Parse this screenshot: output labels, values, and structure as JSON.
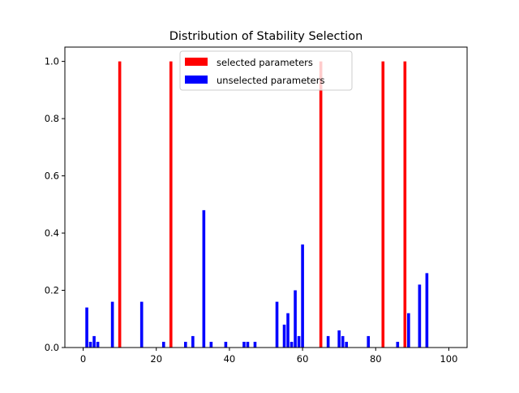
{
  "chart_data": {
    "type": "bar",
    "title": "Distribution of Stability Selection",
    "xlabel": "",
    "ylabel": "",
    "xlim": [
      -5,
      105
    ],
    "ylim": [
      0,
      1.05
    ],
    "xticks": [
      0,
      20,
      40,
      60,
      80,
      100
    ],
    "yticks": [
      0.0,
      0.2,
      0.4,
      0.6,
      0.8,
      1.0
    ],
    "grid": false,
    "legend_position": "top-center",
    "series": [
      {
        "name": "selected parameters",
        "color": "#ff0000",
        "x": [
          10,
          24,
          65,
          82,
          88
        ],
        "values": [
          1.0,
          1.0,
          1.0,
          1.0,
          1.0
        ]
      },
      {
        "name": "unselected parameters",
        "color": "#0000ff",
        "x": [
          1,
          2,
          3,
          4,
          8,
          16,
          22,
          28,
          30,
          33,
          35,
          39,
          44,
          45,
          47,
          53,
          55,
          56,
          57,
          58,
          59,
          60,
          67,
          70,
          71,
          72,
          78,
          86,
          89,
          92,
          94
        ],
        "values": [
          0.14,
          0.02,
          0.04,
          0.02,
          0.16,
          0.16,
          0.02,
          0.02,
          0.04,
          0.48,
          0.02,
          0.02,
          0.02,
          0.02,
          0.02,
          0.16,
          0.08,
          0.12,
          0.02,
          0.2,
          0.04,
          0.36,
          0.04,
          0.06,
          0.04,
          0.02,
          0.04,
          0.02,
          0.12,
          0.22,
          0.26
        ]
      }
    ]
  }
}
